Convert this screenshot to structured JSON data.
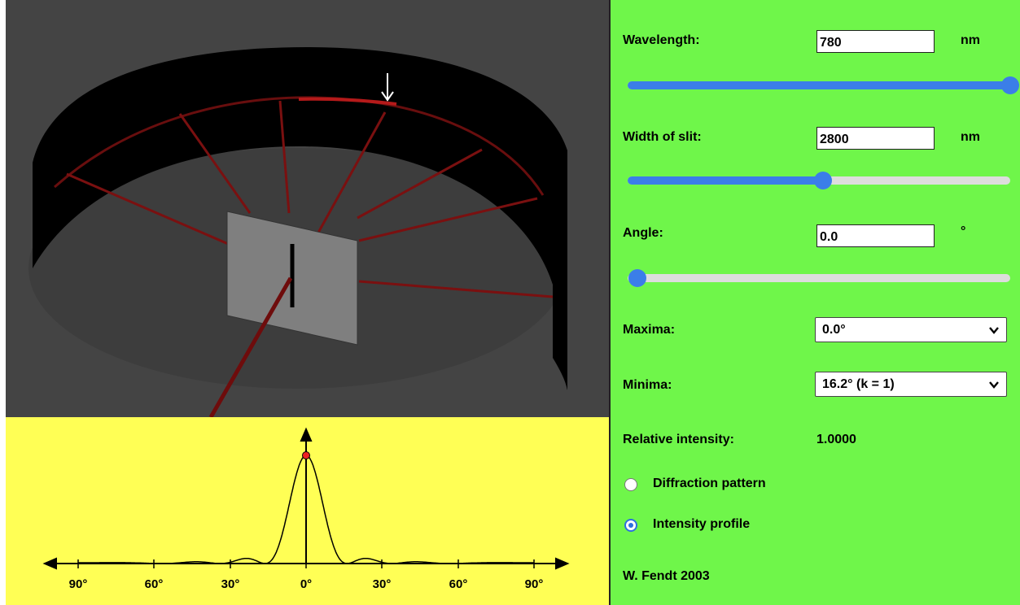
{
  "controls": {
    "wavelength": {
      "label": "Wavelength:",
      "value": "780",
      "unit": "nm",
      "slider_fraction": 1.0
    },
    "slit_width": {
      "label": "Width of slit:",
      "value": "2800",
      "unit": "nm",
      "slider_fraction": 0.5
    },
    "angle": {
      "label": "Angle:",
      "value": "0.0",
      "unit": "°",
      "slider_fraction": 0.0
    },
    "maxima": {
      "label": "Maxima:",
      "selected": "0.0°"
    },
    "minima": {
      "label": "Minima:",
      "selected": "16.2° (k = 1)"
    },
    "relative_intensity": {
      "label": "Relative intensity:",
      "value": "1.0000"
    },
    "view_mode": {
      "options": [
        {
          "label": "Diffraction pattern",
          "checked": false
        },
        {
          "label": "Intensity profile",
          "checked": true
        }
      ]
    },
    "credit": "W. Fendt 2003"
  },
  "graph": {
    "tick_labels": [
      "90°",
      "60°",
      "30°",
      "0°",
      "30°",
      "60°",
      "90°"
    ],
    "colors": {
      "background": "#ffff55",
      "marker": "#ee2222",
      "curve": "#000000"
    }
  },
  "simulation": {
    "colors": {
      "background": "#444444",
      "screen": "#000000",
      "ray": "#7a1010",
      "slit_plate": "#777777"
    }
  }
}
